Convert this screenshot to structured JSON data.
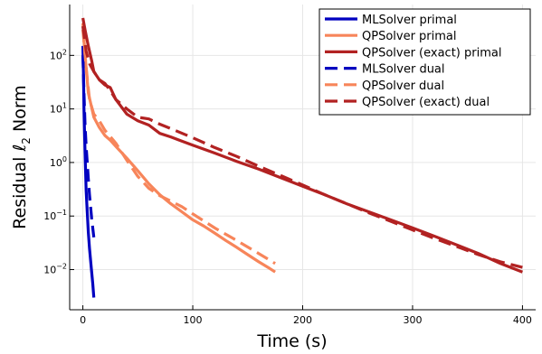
{
  "chart_data": {
    "type": "line",
    "xlabel": "Time (s)",
    "ylabel_prefix": "Residual ",
    "ylabel_symbol": "ℓ",
    "ylabel_subscript": "2",
    "ylabel_suffix": " Norm",
    "xlim": [
      -12,
      412
    ],
    "ylim_log10": [
      -2.75,
      2.95
    ],
    "yscale": "log",
    "grid": true,
    "legend_position": "top-right",
    "x_ticks": [
      {
        "value": 0,
        "label": "0"
      },
      {
        "value": 100,
        "label": "100"
      },
      {
        "value": 200,
        "label": "200"
      },
      {
        "value": 300,
        "label": "300"
      },
      {
        "value": 400,
        "label": "400"
      }
    ],
    "y_ticks": [
      {
        "exp": -2,
        "base": "10",
        "sup": "−2"
      },
      {
        "exp": -1,
        "base": "10",
        "sup": "−1"
      },
      {
        "exp": 0,
        "base": "10",
        "sup": "0"
      },
      {
        "exp": 1,
        "base": "10",
        "sup": "1"
      },
      {
        "exp": 2,
        "base": "10",
        "sup": "2"
      }
    ],
    "series": [
      {
        "name": "MLSolver primal",
        "color": "#0000c0",
        "dash": false,
        "x": [
          0,
          0.5,
          1,
          2,
          3,
          4,
          5,
          6,
          7,
          8,
          9,
          10
        ],
        "y": [
          150,
          50,
          10,
          1.5,
          0.3,
          0.12,
          0.05,
          0.025,
          0.015,
          0.009,
          0.0055,
          0.003
        ]
      },
      {
        "name": "QPSolver primal",
        "color": "#f7855a",
        "dash": false,
        "x": [
          0,
          2,
          5,
          10,
          15,
          20,
          25,
          30,
          40,
          50,
          60,
          70,
          80,
          90,
          100,
          110,
          120,
          130,
          140,
          150,
          160,
          170,
          175
        ],
        "y": [
          400,
          100,
          20,
          7,
          4.5,
          3.2,
          2.6,
          2.0,
          1.2,
          0.7,
          0.4,
          0.25,
          0.17,
          0.12,
          0.085,
          0.065,
          0.048,
          0.035,
          0.026,
          0.019,
          0.014,
          0.0105,
          0.009
        ]
      },
      {
        "name": "QPSolver (exact) primal",
        "color": "#b22222",
        "dash": false,
        "x": [
          0,
          2,
          5,
          8,
          10,
          15,
          20,
          25,
          30,
          40,
          50,
          60,
          70,
          80,
          90,
          100,
          120,
          140,
          160,
          180,
          200,
          220,
          240,
          260,
          280,
          300,
          320,
          340,
          360,
          380,
          400
        ],
        "y": [
          500,
          300,
          150,
          80,
          50,
          35,
          28,
          25,
          15,
          8,
          6,
          5,
          3.5,
          3.0,
          2.5,
          2.1,
          1.5,
          1.05,
          0.75,
          0.52,
          0.36,
          0.25,
          0.17,
          0.12,
          0.085,
          0.06,
          0.042,
          0.029,
          0.02,
          0.013,
          0.009
        ]
      },
      {
        "name": "MLSolver dual",
        "color": "#0000c0",
        "dash": true,
        "x": [
          0,
          1,
          2,
          3,
          4,
          5,
          6,
          7,
          8,
          9,
          10
        ],
        "y": [
          100,
          20,
          5,
          2,
          1,
          0.5,
          0.25,
          0.15,
          0.09,
          0.06,
          0.04
        ]
      },
      {
        "name": "QPSolver dual",
        "color": "#f7855a",
        "dash": true,
        "x": [
          0,
          3,
          6,
          10,
          15,
          20,
          30,
          40,
          50,
          60,
          70,
          80,
          90,
          100,
          120,
          140,
          160,
          175
        ],
        "y": [
          300,
          60,
          15,
          8,
          6,
          4,
          2.3,
          1.1,
          0.55,
          0.33,
          0.24,
          0.19,
          0.15,
          0.11,
          0.06,
          0.035,
          0.02,
          0.013
        ]
      },
      {
        "name": "QPSolver (exact) dual",
        "color": "#b22222",
        "dash": true,
        "x": [
          0,
          3,
          6,
          10,
          15,
          20,
          25,
          30,
          40,
          50,
          60,
          70,
          80,
          100,
          120,
          140,
          160,
          180,
          200,
          220,
          240,
          260,
          280,
          300,
          320,
          340,
          360,
          380,
          400
        ],
        "y": [
          350,
          120,
          70,
          50,
          35,
          30,
          22,
          15,
          10,
          7,
          6.5,
          5.2,
          4.3,
          2.9,
          1.9,
          1.3,
          0.85,
          0.57,
          0.38,
          0.25,
          0.17,
          0.115,
          0.08,
          0.055,
          0.038,
          0.027,
          0.019,
          0.014,
          0.011
        ]
      }
    ]
  }
}
